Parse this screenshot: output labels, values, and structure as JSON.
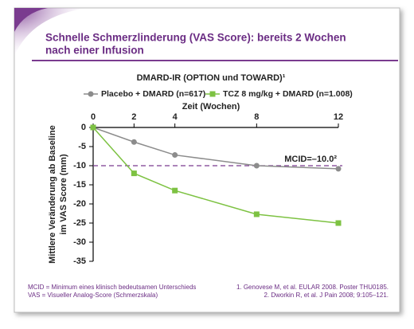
{
  "slide": {
    "title": [
      "Schnelle Schmerzlinderung (VAS Score): bereits 2 Wochen",
      "nach einer Infusion"
    ],
    "footnotes_left": [
      "MCID = Minimum eines klinisch bedeutsamen Unterschieds",
      "VAS = Visueller Analog-Score (Schmerzskala)"
    ],
    "footnotes_right": [
      "1. Genovese M, et al. EULAR 2008. Poster THU0185.",
      "2. Dworkin R, et al. J Pain 2008; 9:105–121."
    ]
  },
  "chart_data": {
    "type": "line",
    "title": "DMARD-IR (OPTION und TOWARD)¹",
    "x_label": "Zeit (Wochen)",
    "y_label": [
      "Mittlere Veränderung ab Baseline",
      "im VAS Score (mm)"
    ],
    "x": [
      0,
      2,
      4,
      8,
      12
    ],
    "xlim": [
      0,
      12
    ],
    "xticks": [
      0,
      2,
      4,
      8,
      12
    ],
    "ylim": [
      -35,
      0
    ],
    "yticks": [
      0,
      -5,
      -10,
      -15,
      -20,
      -25,
      -30,
      -35
    ],
    "legend": "top",
    "series": [
      {
        "name": "Placebo + DMARD (n=617)",
        "color": "#8c8c8c",
        "marker": "circle",
        "values": [
          0,
          -3.8,
          -7.2,
          -10,
          -10.8
        ]
      },
      {
        "name": "TCZ 8 mg/kg + DMARD (n=1.008)",
        "color": "#7dc242",
        "marker": "square",
        "values": [
          0,
          -12,
          -16.5,
          -22.7,
          -25
        ]
      }
    ],
    "reference_line": {
      "value": -10,
      "label": "MCID=–10.0²",
      "color": "#7a3b8f"
    }
  }
}
